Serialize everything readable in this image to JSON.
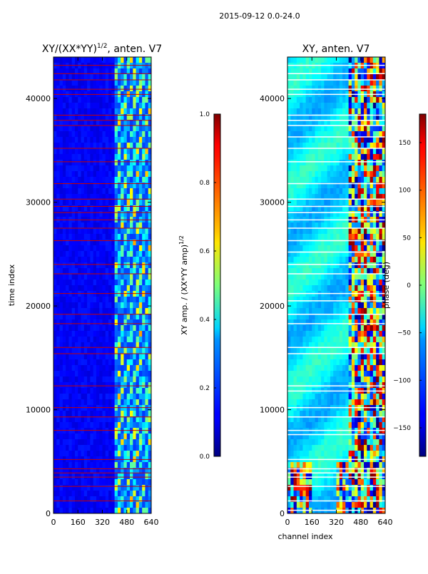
{
  "chart_data": [
    {
      "type": "heatmap",
      "suptitle": "2015-09-12 0.0-24.0",
      "title": "XY/(XX*YY)^{1/2}, anten. V7",
      "title_main": "XY/(XX*YY)",
      "title_exp": "1/2",
      "title_rest": ", anten. V7",
      "xlabel": "",
      "ylabel": "time index",
      "xlim": [
        0,
        640
      ],
      "ylim": [
        0,
        44000
      ],
      "xticks": [
        0,
        160,
        320,
        480,
        640
      ],
      "yticks": [
        0,
        10000,
        20000,
        30000,
        40000
      ],
      "colorbar": {
        "label": "XY amp. / (XX*YY amp)^{1/2}",
        "label_main": "XY amp. / (XX*YY amp)",
        "label_exp": "1/2",
        "range": [
          0.0,
          1.0
        ],
        "ticks": [
          0.0,
          0.2,
          0.4,
          0.6,
          0.8,
          1.0
        ],
        "tick_labels": [
          "0.0",
          "0.2",
          "0.4",
          "0.6",
          "0.8",
          "1.0"
        ]
      },
      "flagged_rows": [
        1200,
        2600,
        3500,
        3900,
        4300,
        5200,
        8000,
        9300,
        10200,
        12300,
        15400,
        16000,
        18300,
        19200,
        21200,
        23100,
        24000,
        26300,
        27500,
        28300,
        29000,
        29600,
        30300,
        31800,
        33900,
        35200,
        37400,
        37900,
        38400,
        40400,
        40900,
        41800,
        42400,
        43200
      ]
    },
    {
      "type": "heatmap",
      "title": "XY, anten. V7",
      "xlabel": "channel index",
      "ylabel": "",
      "xlim": [
        0,
        640
      ],
      "ylim": [
        0,
        44000
      ],
      "xticks": [
        0,
        160,
        320,
        480,
        640
      ],
      "yticks": [
        0,
        10000,
        20000,
        30000,
        40000
      ],
      "colorbar": {
        "label": "phase (deg)",
        "range": [
          -180,
          180
        ],
        "ticks": [
          -150,
          -100,
          -50,
          0,
          50,
          100,
          150
        ],
        "tick_labels": [
          "−150",
          "−100",
          "−50",
          "0",
          "50",
          "100",
          "150"
        ]
      },
      "flagged_rows": [
        300,
        1200,
        2600,
        3500,
        3900,
        4300,
        5200,
        7600,
        8000,
        9300,
        10200,
        11800,
        12300,
        15400,
        16000,
        18300,
        19200,
        20500,
        21200,
        23100,
        24000,
        25200,
        26300,
        27500,
        28300,
        29000,
        29600,
        30300,
        31800,
        33900,
        35200,
        36300,
        37400,
        37900,
        38400,
        40400,
        40900,
        41800,
        42400,
        43200
      ]
    }
  ]
}
